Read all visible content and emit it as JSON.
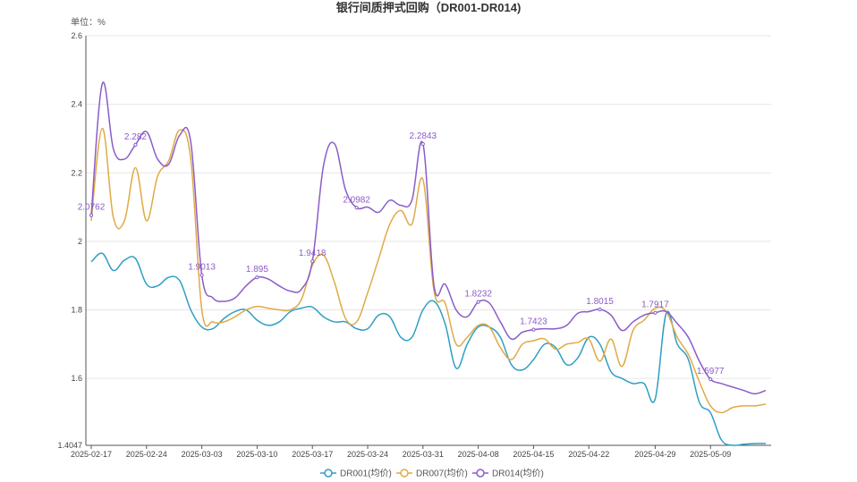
{
  "chart_data": {
    "type": "line",
    "title": "银行间质押式回购（DR001-DR014)",
    "unit_label": "单位：%",
    "ylim": [
      1.4047,
      2.6
    ],
    "y_ticks": [
      "1.4047",
      "1.6",
      "1.8",
      "2",
      "2.2",
      "2.4",
      "2.6"
    ],
    "x_tick_labels": [
      "2025-02-17",
      "2025-02-24",
      "2025-03-03",
      "2025-03-10",
      "2025-03-17",
      "2025-03-24",
      "2025-03-31",
      "2025-04-08",
      "2025-04-15",
      "2025-04-22",
      "2025-04-29",
      "2025-05-09"
    ],
    "legend_position": "bottom-center",
    "grid": true,
    "x": [
      "2025-02-17",
      "2025-02-18",
      "2025-02-19",
      "2025-02-20",
      "2025-02-21",
      "2025-02-24",
      "2025-02-25",
      "2025-02-26",
      "2025-02-27",
      "2025-02-28",
      "2025-03-03",
      "2025-03-04",
      "2025-03-05",
      "2025-03-06",
      "2025-03-07",
      "2025-03-10",
      "2025-03-11",
      "2025-03-12",
      "2025-03-13",
      "2025-03-14",
      "2025-03-17",
      "2025-03-18",
      "2025-03-19",
      "2025-03-20",
      "2025-03-21",
      "2025-03-24",
      "2025-03-25",
      "2025-03-26",
      "2025-03-27",
      "2025-03-28",
      "2025-03-31",
      "2025-04-01",
      "2025-04-02",
      "2025-04-03",
      "2025-04-07",
      "2025-04-08",
      "2025-04-09",
      "2025-04-10",
      "2025-04-11",
      "2025-04-14",
      "2025-04-15",
      "2025-04-16",
      "2025-04-17",
      "2025-04-18",
      "2025-04-21",
      "2025-04-22",
      "2025-04-23",
      "2025-04-24",
      "2025-04-25",
      "2025-04-27",
      "2025-04-28",
      "2025-04-29",
      "2025-04-30",
      "2025-05-06",
      "2025-05-07",
      "2025-05-08",
      "2025-05-09",
      "2025-05-12",
      "2025-05-13",
      "2025-05-14",
      "2025-05-15",
      "2025-05-16"
    ],
    "series": [
      {
        "name": "DR001(均价)",
        "color": "#2e9fc5",
        "values": [
          1.94,
          1.965,
          1.915,
          1.945,
          1.95,
          1.875,
          1.87,
          1.895,
          1.885,
          1.8,
          1.75,
          1.745,
          1.775,
          1.795,
          1.8,
          1.77,
          1.755,
          1.765,
          1.795,
          1.805,
          1.808,
          1.78,
          1.765,
          1.765,
          1.745,
          1.745,
          1.785,
          1.78,
          1.72,
          1.72,
          1.8,
          1.825,
          1.76,
          1.63,
          1.7,
          1.75,
          1.75,
          1.72,
          1.64,
          1.625,
          1.655,
          1.7,
          1.69,
          1.64,
          1.66,
          1.72,
          1.7,
          1.62,
          1.6,
          1.585,
          1.585,
          1.54,
          1.79,
          1.7,
          1.655,
          1.53,
          1.5,
          1.42,
          1.405,
          1.408,
          1.41,
          1.41
        ]
      },
      {
        "name": "DR007(均价)",
        "color": "#e0aa45",
        "values": [
          2.06,
          2.33,
          2.07,
          2.06,
          2.215,
          2.06,
          2.19,
          2.235,
          2.325,
          2.24,
          1.8,
          1.765,
          1.765,
          1.78,
          1.8,
          1.81,
          1.805,
          1.8,
          1.8,
          1.83,
          1.93,
          1.96,
          1.88,
          1.775,
          1.765,
          1.85,
          1.95,
          2.05,
          2.09,
          2.05,
          2.18,
          1.855,
          1.82,
          1.7,
          1.72,
          1.755,
          1.75,
          1.69,
          1.655,
          1.7,
          1.71,
          1.715,
          1.685,
          1.7,
          1.705,
          1.715,
          1.65,
          1.715,
          1.635,
          1.74,
          1.77,
          1.805,
          1.795,
          1.72,
          1.67,
          1.59,
          1.52,
          1.5,
          1.515,
          1.52,
          1.52,
          1.525
        ]
      },
      {
        "name": "DR014(均价)",
        "color": "#8b5cc8",
        "values": [
          2.0762,
          2.46,
          2.27,
          2.24,
          2.282,
          2.32,
          2.24,
          2.225,
          2.31,
          2.29,
          1.9013,
          1.835,
          1.825,
          1.835,
          1.87,
          1.895,
          1.89,
          1.87,
          1.855,
          1.86,
          1.9418,
          2.22,
          2.285,
          2.15,
          2.0982,
          2.1,
          2.085,
          2.12,
          2.105,
          2.12,
          2.2843,
          1.87,
          1.875,
          1.8,
          1.78,
          1.8232,
          1.82,
          1.765,
          1.715,
          1.735,
          1.7423,
          1.745,
          1.745,
          1.755,
          1.79,
          1.795,
          1.8015,
          1.785,
          1.74,
          1.765,
          1.785,
          1.7917,
          1.795,
          1.76,
          1.72,
          1.65,
          1.5977,
          1.585,
          1.575,
          1.565,
          1.555,
          1.565
        ]
      }
    ],
    "data_labels": [
      {
        "series": 2,
        "index": 0,
        "text": "2.0762"
      },
      {
        "series": 2,
        "index": 4,
        "text": "2.282"
      },
      {
        "series": 2,
        "index": 10,
        "text": "1.9013"
      },
      {
        "series": 2,
        "index": 15,
        "text": "1.895"
      },
      {
        "series": 2,
        "index": 20,
        "text": "1.9418"
      },
      {
        "series": 2,
        "index": 24,
        "text": "2.0982"
      },
      {
        "series": 2,
        "index": 30,
        "text": "2.2843"
      },
      {
        "series": 2,
        "index": 35,
        "text": "1.8232"
      },
      {
        "series": 2,
        "index": 40,
        "text": "1.7423"
      },
      {
        "series": 2,
        "index": 46,
        "text": "1.8015"
      },
      {
        "series": 2,
        "index": 51,
        "text": "1.7917"
      },
      {
        "series": 2,
        "index": 56,
        "text": "1.5977"
      }
    ]
  }
}
